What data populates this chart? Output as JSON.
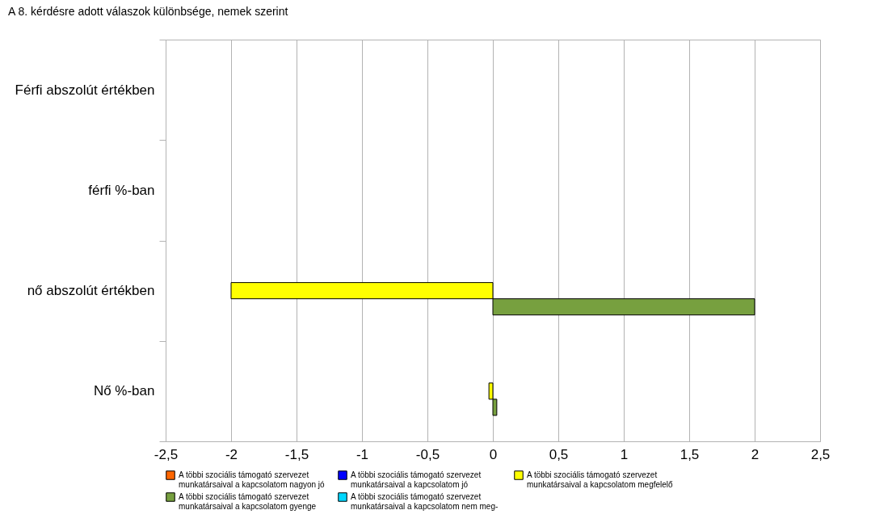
{
  "chart_data": {
    "type": "bar",
    "orientation": "horizontal",
    "title": "A 8. kérdésre adott válaszok különbsége, nemek szerint",
    "categories": [
      "Férfi abszolút értékben",
      "férfi %-ban",
      "nő abszolút értékben",
      "Nő %-ban"
    ],
    "series": [
      {
        "name": "A többi szociális támogató szervezet\nmunkatársaival a kapcsolatom nagyon jó",
        "color": "#ff6600",
        "values": [
          null,
          null,
          null,
          null
        ]
      },
      {
        "name": "A többi szociális támogató szervezet\nmunkatársaival a kapcsolatom jó",
        "color": "#0000ff",
        "values": [
          null,
          null,
          null,
          null
        ]
      },
      {
        "name": "A többi szociális támogató szervezet\nmunkatársaival a kapcsolatom  megfelelő",
        "color": "#ffff00",
        "values": [
          null,
          null,
          -2,
          -0.03
        ]
      },
      {
        "name": "A többi szociális támogató szervezet\nmunkatársaival a kapcsolatom gyenge",
        "color": "#77a03f",
        "values": [
          null,
          null,
          2,
          0.03
        ]
      },
      {
        "name": "A többi szociális támogató szervezet\nmunkatársaival a kapcsolatom  nem meg-",
        "color": "#00d7ff",
        "values": [
          null,
          null,
          null,
          null
        ]
      }
    ],
    "xlim": [
      -2.5,
      2.5
    ],
    "xticks": [
      {
        "value": -2.5,
        "label": "-2,5"
      },
      -2,
      {
        "value": -1.5,
        "label": "-1,5"
      },
      -1,
      {
        "value": -0.5,
        "label": "-0,5"
      },
      0,
      {
        "value": 0.5,
        "label": "0,5"
      },
      1,
      {
        "value": 1.5,
        "label": "1,5"
      },
      2,
      {
        "value": 2.5,
        "label": "2,5"
      }
    ],
    "grid": "x",
    "legend": "bottom"
  }
}
